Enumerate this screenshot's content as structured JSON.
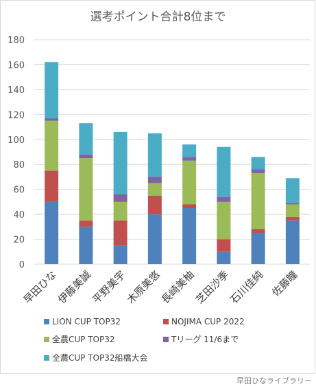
{
  "chart_data": {
    "type": "bar",
    "stacked": true,
    "title": "選考ポイント合計8位まで",
    "categories": [
      "早田ひな",
      "伊藤美誠",
      "平野美宇",
      "木原美悠",
      "長崎美柚",
      "芝田沙季",
      "石川佳純",
      "佐藤瞳"
    ],
    "series": [
      {
        "name": "LION CUP TOP32",
        "color": "#4f81bd",
        "values": [
          50,
          30,
          15,
          40,
          45,
          10,
          25,
          35
        ]
      },
      {
        "name": "NOJIMA CUP 2022",
        "color": "#c0504d",
        "values": [
          25,
          5,
          20,
          15,
          3,
          10,
          3,
          3
        ]
      },
      {
        "name": "全農CUP TOP32",
        "color": "#9bbb59",
        "values": [
          40,
          50,
          15,
          10,
          35,
          30,
          45,
          10
        ]
      },
      {
        "name": "Tリーグ 11/6まで",
        "color": "#8064a2",
        "values": [
          2,
          3,
          6,
          5,
          3,
          4,
          3,
          1
        ]
      },
      {
        "name": "全農CUP TOP32船橋大会",
        "color": "#4bacc6",
        "values": [
          45,
          25,
          50,
          35,
          10,
          40,
          10,
          20
        ]
      }
    ],
    "ylim": [
      0,
      180
    ],
    "yticks": [
      0,
      20,
      40,
      60,
      80,
      100,
      120,
      140,
      160,
      180
    ],
    "grid": true,
    "legend_position": "bottom"
  },
  "credit": "早田ひなライブラリー"
}
